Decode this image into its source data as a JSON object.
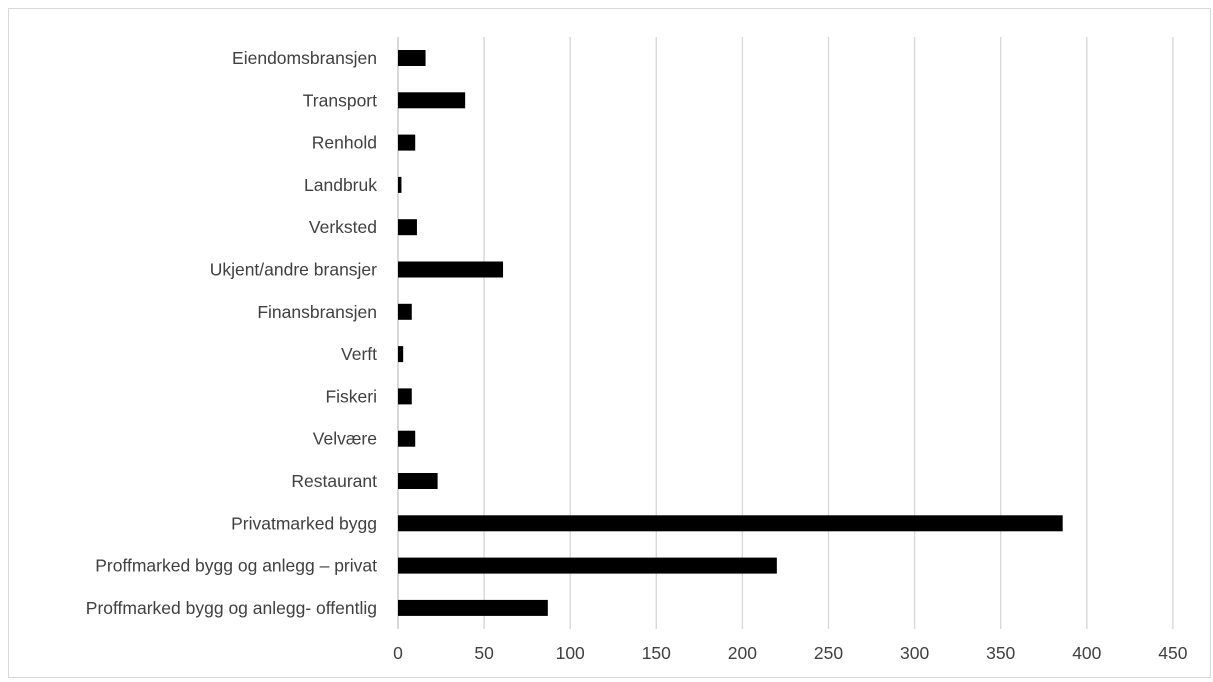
{
  "chart_data": {
    "type": "bar",
    "orientation": "horizontal",
    "categories": [
      "Eiendomsbransjen",
      "Transport ",
      "Renhold",
      "Landbruk",
      "Verksted",
      "Ukjent/andre bransjer",
      "Finansbransjen",
      "Verft",
      "Fiskeri ",
      "Velvære",
      "Restaurant",
      "Privatmarked bygg",
      "Proffmarked bygg og anlegg – privat",
      "Proffmarked bygg og anlegg- offentlig "
    ],
    "values": [
      16,
      39,
      10,
      2,
      11,
      61,
      8,
      3,
      8,
      10,
      23,
      386,
      220,
      87
    ],
    "xlim": [
      0,
      450
    ],
    "xticks": [
      0,
      50,
      100,
      150,
      200,
      250,
      300,
      350,
      400,
      450
    ],
    "title": "",
    "xlabel": "",
    "ylabel": "",
    "grid": "vertical",
    "legend": "none",
    "bar_color": "#000000"
  }
}
